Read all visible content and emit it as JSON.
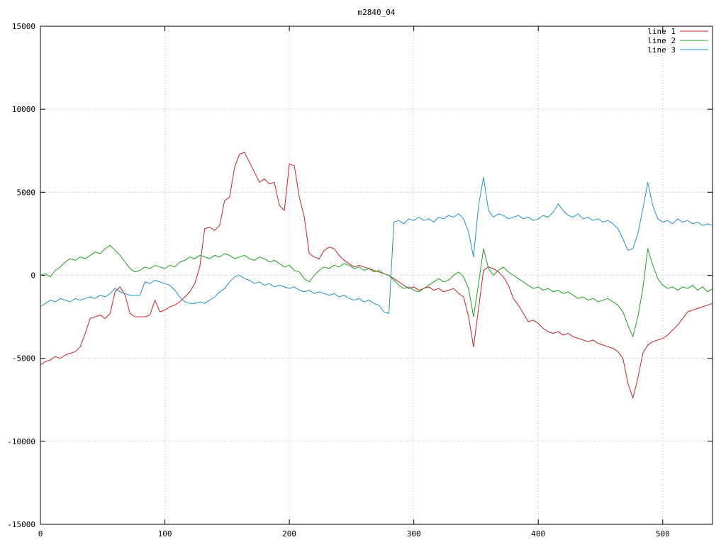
{
  "chart_data": {
    "type": "line",
    "title": "m2840_04",
    "xlabel": "",
    "ylabel": "",
    "xlim": [
      0,
      540
    ],
    "ylim": [
      -15000,
      15000
    ],
    "x_ticks": [
      0,
      100,
      200,
      300,
      400,
      500
    ],
    "y_ticks": [
      -15000,
      -10000,
      -5000,
      0,
      5000,
      10000,
      15000
    ],
    "grid": true,
    "grid_style": "dotted",
    "legend_position": "top-right",
    "background_color": "#ffffff",
    "axis_color": "#000000",
    "grid_color": "#b8b8b8",
    "x_start": 0,
    "x_step": 4,
    "series": [
      {
        "name": "line 1",
        "color": "#cc2020",
        "values": [
          -5400,
          -5200,
          -5100,
          -4900,
          -5000,
          -4800,
          -4700,
          -4600,
          -4300,
          -3500,
          -2600,
          -2500,
          -2400,
          -2600,
          -2300,
          -1000,
          -700,
          -1200,
          -2300,
          -2500,
          -2500,
          -2500,
          -2400,
          -1500,
          -2200,
          -2100,
          -1900,
          -1800,
          -1600,
          -1300,
          -1000,
          -500,
          500,
          2800,
          2900,
          2700,
          3000,
          4500,
          4700,
          6500,
          7300,
          7400,
          6800,
          6200,
          5600,
          5800,
          5500,
          5600,
          4200,
          3900,
          6700,
          6600,
          4700,
          3500,
          1300,
          1100,
          1000,
          1500,
          1700,
          1600,
          1200,
          900,
          700,
          500,
          600,
          500,
          400,
          300,
          200,
          100,
          0,
          -200,
          -400,
          -600,
          -800,
          -700,
          -900,
          -800,
          -700,
          -900,
          -800,
          -1000,
          -900,
          -800,
          -1100,
          -1300,
          -2500,
          -4300,
          -2000,
          300,
          500,
          400,
          200,
          -100,
          -600,
          -1400,
          -1800,
          -2300,
          -2800,
          -2700,
          -2900,
          -3200,
          -3400,
          -3500,
          -3400,
          -3600,
          -3500,
          -3700,
          -3800,
          -3900,
          -4000,
          -3900,
          -4100,
          -4200,
          -4300,
          -4400,
          -4600,
          -5000,
          -6500,
          -7400,
          -6200,
          -4700,
          -4200,
          -4000,
          -3900,
          -3800,
          -3600,
          -3300,
          -3000,
          -2600,
          -2200,
          -2100,
          -2000,
          -1900,
          -1800,
          -1700
        ]
      },
      {
        "name": "line 2",
        "color": "#20a020",
        "values": [
          0,
          100,
          -100,
          300,
          500,
          800,
          1000,
          900,
          1100,
          1000,
          1200,
          1400,
          1300,
          1600,
          1800,
          1500,
          1200,
          800,
          400,
          200,
          300,
          500,
          400,
          600,
          500,
          400,
          600,
          500,
          800,
          900,
          1100,
          1000,
          1200,
          1100,
          1000,
          1200,
          1100,
          1300,
          1200,
          1000,
          1100,
          1200,
          1000,
          900,
          1100,
          1000,
          800,
          900,
          700,
          500,
          600,
          300,
          200,
          -200,
          -400,
          0,
          300,
          500,
          400,
          600,
          500,
          700,
          600,
          400,
          500,
          300,
          400,
          200,
          300,
          100,
          0,
          -300,
          -600,
          -800,
          -700,
          -900,
          -1000,
          -800,
          -600,
          -400,
          -200,
          -400,
          -300,
          0,
          200,
          -100,
          -800,
          -2500,
          -500,
          1600,
          400,
          0,
          300,
          500,
          200,
          0,
          -200,
          -400,
          -600,
          -800,
          -700,
          -900,
          -800,
          -1000,
          -900,
          -1100,
          -1000,
          -1200,
          -1400,
          -1300,
          -1500,
          -1400,
          -1600,
          -1500,
          -1400,
          -1600,
          -1800,
          -2200,
          -3000,
          -3700,
          -2500,
          -800,
          1600,
          600,
          -200,
          -600,
          -800,
          -700,
          -900,
          -700,
          -800,
          -600,
          -900,
          -700,
          -1000,
          -800
        ]
      },
      {
        "name": "line 3",
        "color": "#2090d0",
        "values": [
          -1900,
          -1700,
          -1500,
          -1600,
          -1400,
          -1500,
          -1600,
          -1400,
          -1500,
          -1400,
          -1300,
          -1400,
          -1200,
          -1300,
          -1100,
          -800,
          -1000,
          -1100,
          -1200,
          -1200,
          -1200,
          -400,
          -500,
          -300,
          -400,
          -500,
          -600,
          -900,
          -1300,
          -1600,
          -1700,
          -1700,
          -1600,
          -1700,
          -1500,
          -1300,
          -1000,
          -800,
          -400,
          -100,
          0,
          -200,
          -300,
          -500,
          -400,
          -600,
          -500,
          -700,
          -600,
          -700,
          -800,
          -700,
          -900,
          -1000,
          -900,
          -1100,
          -1000,
          -1100,
          -1200,
          -1100,
          -1300,
          -1200,
          -1400,
          -1500,
          -1400,
          -1600,
          -1500,
          -1700,
          -1800,
          -2200,
          -2300,
          3200,
          3300,
          3100,
          3400,
          3300,
          3500,
          3300,
          3400,
          3200,
          3500,
          3400,
          3600,
          3500,
          3700,
          3400,
          2600,
          1100,
          4200,
          5900,
          3900,
          3500,
          3700,
          3600,
          3400,
          3500,
          3600,
          3400,
          3500,
          3300,
          3400,
          3600,
          3500,
          3800,
          4300,
          3900,
          3600,
          3500,
          3700,
          3400,
          3500,
          3300,
          3400,
          3200,
          3300,
          3100,
          2800,
          2200,
          1500,
          1600,
          2500,
          4000,
          5600,
          4200,
          3400,
          3200,
          3300,
          3100,
          3400,
          3200,
          3300,
          3100,
          3200,
          3000,
          3100,
          3000
        ]
      }
    ],
    "legend": [
      {
        "label": "line 1",
        "color": "#cc2020"
      },
      {
        "label": "line 2",
        "color": "#20a020"
      },
      {
        "label": "line 3",
        "color": "#2090d0"
      }
    ]
  }
}
